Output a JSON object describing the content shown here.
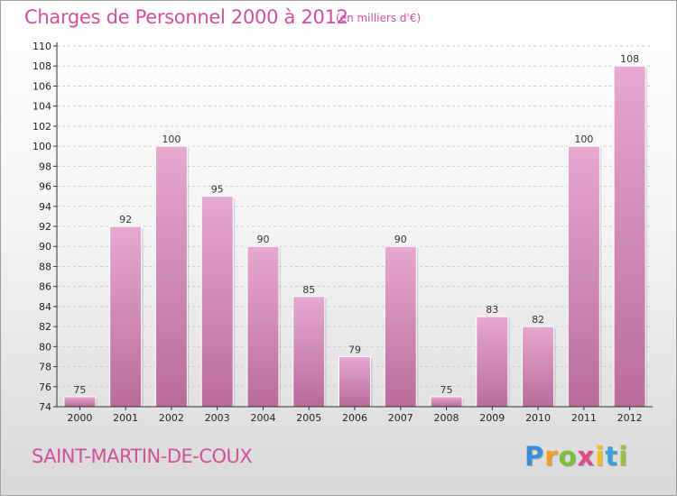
{
  "header": {
    "title": "Charges de Personnel 2000 à 2012",
    "unit": "(en milliers d'€)"
  },
  "footer": {
    "commune": "SAINT-MARTIN-DE-COUX",
    "logo_letters": [
      "P",
      "r",
      "o",
      "x",
      "i",
      "t",
      "i"
    ],
    "logo_colors": [
      "#3a8fd6",
      "#f0a020",
      "#7cbf3a",
      "#e04a8a",
      "#f0c020",
      "#3aa0d8",
      "#9bc23c"
    ]
  },
  "colors": {
    "bar_top": "#e6a9cf",
    "bar_bottom": "#b96c9a",
    "accent": "#d0509a",
    "grid": "#cccccc",
    "axis": "#333333"
  },
  "chart_data": {
    "type": "bar",
    "categories": [
      "2000",
      "2001",
      "2002",
      "2003",
      "2004",
      "2005",
      "2006",
      "2007",
      "2008",
      "2009",
      "2010",
      "2011",
      "2012"
    ],
    "values": [
      75,
      92,
      100,
      95,
      90,
      85,
      79,
      90,
      75,
      83,
      82,
      100,
      108
    ],
    "data_labels": [
      "75",
      "92",
      "100",
      "95",
      "90",
      "85",
      "79",
      "90",
      "75",
      "83",
      "82",
      "100",
      "108"
    ],
    "title": "Charges de Personnel 2000 à 2012",
    "xlabel": "",
    "ylabel": "",
    "ylim": [
      74,
      110
    ],
    "yticks": [
      74,
      76,
      78,
      80,
      82,
      84,
      86,
      88,
      90,
      92,
      94,
      96,
      98,
      100,
      102,
      104,
      106,
      108,
      110
    ],
    "grid": true
  }
}
